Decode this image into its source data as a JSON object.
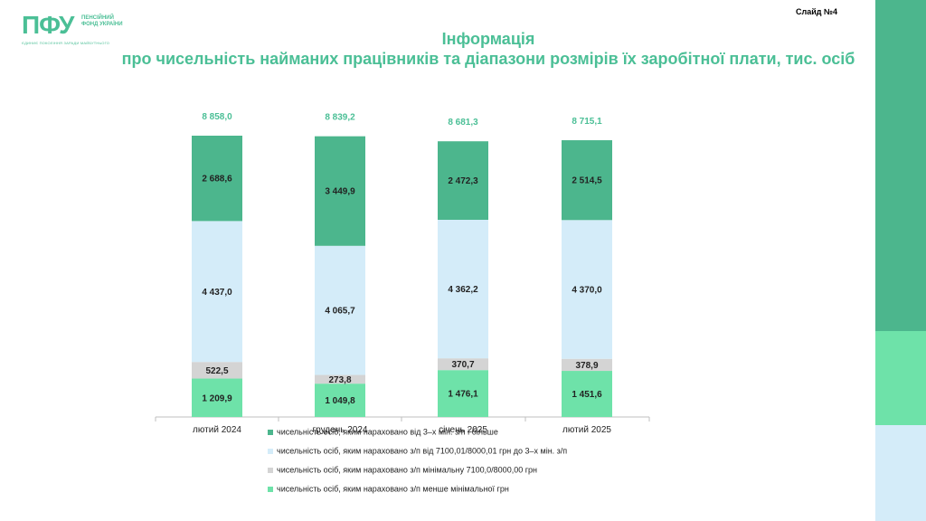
{
  "logo": {
    "mark": "ПФУ",
    "sub": "ПЕНСІЙНИЙ ФОНД УКРАЇНИ",
    "tagline": "ЄДИНИЄ ПОКОЛІННЯ ЗАРАДИ МАЙБУТНЬОГО"
  },
  "slide_label": "Слайд №4",
  "title_line1": "Інформація",
  "title_line2": "про чисельність найманих працівників та діапазони розмірів їх заробітної плати, тис. осіб",
  "colors": {
    "accent": "#4bbf96",
    "dark_green": "#4cb68d",
    "light_blue": "#d4ecf9",
    "grey": "#d4d4d4",
    "light_green": "#6ee2a9"
  },
  "chart_data": {
    "type": "bar",
    "stacked": true,
    "categories": [
      "лютий 2024",
      "грудень 2024",
      "січень 2025",
      "лютий 2025"
    ],
    "totals": [
      8858.0,
      8839.2,
      8681.3,
      8715.1
    ],
    "total_labels": [
      "8 858,0",
      "8 839,2",
      "8 681,3",
      "8 715,1"
    ],
    "series": [
      {
        "name": "чисельність осіб, яким нараховано з/п менше мінімальної грн",
        "color": "#6ee2a9",
        "values": [
          1209.9,
          1049.8,
          1476.1,
          1451.6
        ],
        "labels": [
          "1 209,9",
          "1 049,8",
          "1 476,1",
          "1 451,6"
        ]
      },
      {
        "name": "чисельність осіб, яким нараховано з/п  мінімальну 7100,0/8000,00 грн",
        "color": "#d4d4d4",
        "values": [
          522.5,
          273.8,
          370.7,
          378.9
        ],
        "labels": [
          "522,5",
          "273,8",
          "370,7",
          "378,9"
        ]
      },
      {
        "name": "чисельність осіб, яким нараховано з/п від 7100,01/8000,01 грн до 3–х мін. з/п",
        "color": "#d4ecf9",
        "values": [
          4437.0,
          4065.7,
          4362.2,
          4370.0
        ],
        "labels": [
          "4 437,0",
          "4 065,7",
          "4 362,2",
          "4 370,0"
        ]
      },
      {
        "name": "чисельність осіб, яким нараховано від 3–х мін. з/п і більше",
        "color": "#4cb68d",
        "values": [
          2688.6,
          3449.9,
          2472.3,
          2514.5
        ],
        "labels": [
          "2 688,6",
          "3 449,9",
          "2 472,3",
          "2 514,5"
        ]
      }
    ],
    "legend_order": [
      3,
      2,
      1,
      0
    ],
    "legend_position": "bottom",
    "grid": false
  }
}
